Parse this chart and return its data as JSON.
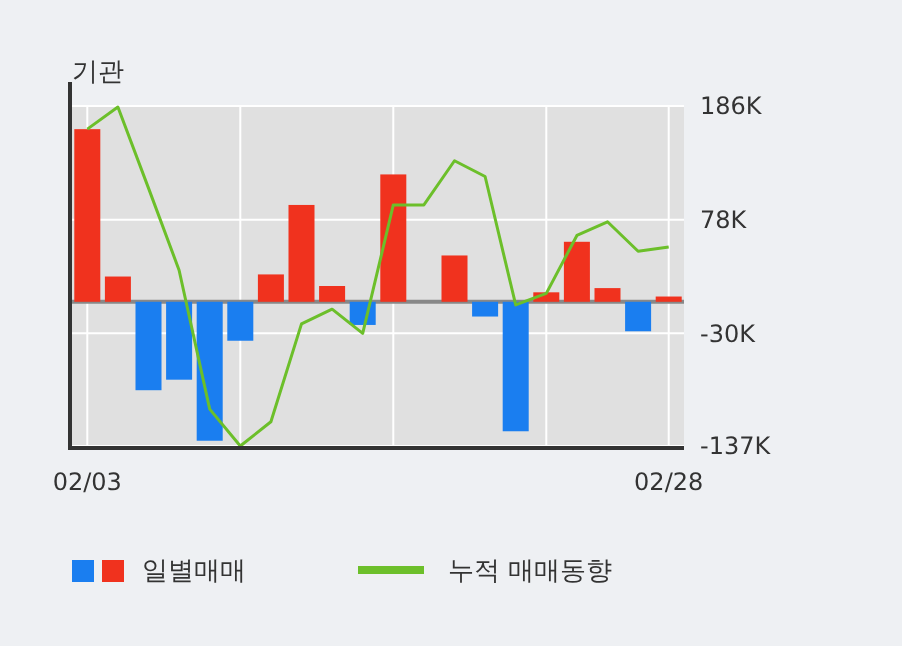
{
  "chart_data": {
    "type": "bar",
    "title": "기관",
    "categories": [
      "02/03",
      null,
      null,
      null,
      null,
      null,
      null,
      null,
      null,
      null,
      null,
      null,
      null,
      null,
      null,
      null,
      null,
      null,
      null,
      "02/28"
    ],
    "series": [
      {
        "name": "일별매매",
        "colors": [
          "#f0321e",
          "#f0321e",
          "#1a7ef0",
          "#1a7ef0",
          "#1a7ef0",
          "#1a7ef0",
          "#f0321e",
          "#f0321e",
          "#f0321e",
          "#1a7ef0",
          "#f0321e",
          "#f0321e",
          "#f0321e",
          "#1a7ef0",
          "#1a7ef0",
          "#f0321e",
          "#f0321e",
          "#f0321e",
          "#1a7ef0",
          "#f0321e"
        ],
        "values": [
          164000,
          24000,
          -84000,
          -74000,
          -132000,
          -37000,
          26000,
          92000,
          15000,
          -22000,
          121000,
          0,
          44000,
          -14000,
          -123000,
          9000,
          57000,
          13000,
          -28000,
          5000
        ]
      },
      {
        "name": "누적 매매동향",
        "type": "line",
        "color": "#6cbf2a",
        "values": [
          164000,
          185000,
          108000,
          30000,
          -102000,
          -137000,
          -114000,
          -21000,
          -7000,
          -30000,
          92000,
          92000,
          134000,
          119000,
          -3000,
          8000,
          63000,
          76000,
          48000,
          52000
        ]
      }
    ],
    "ylim": [
      -137000,
      186000
    ],
    "yticks": [
      {
        "value": 186000,
        "label": "186K"
      },
      {
        "value": 78000,
        "label": "78K"
      },
      {
        "value": -30000,
        "label": "-30K"
      },
      {
        "value": -137000,
        "label": "-137K"
      }
    ],
    "grid": true,
    "legend": "bottom"
  }
}
